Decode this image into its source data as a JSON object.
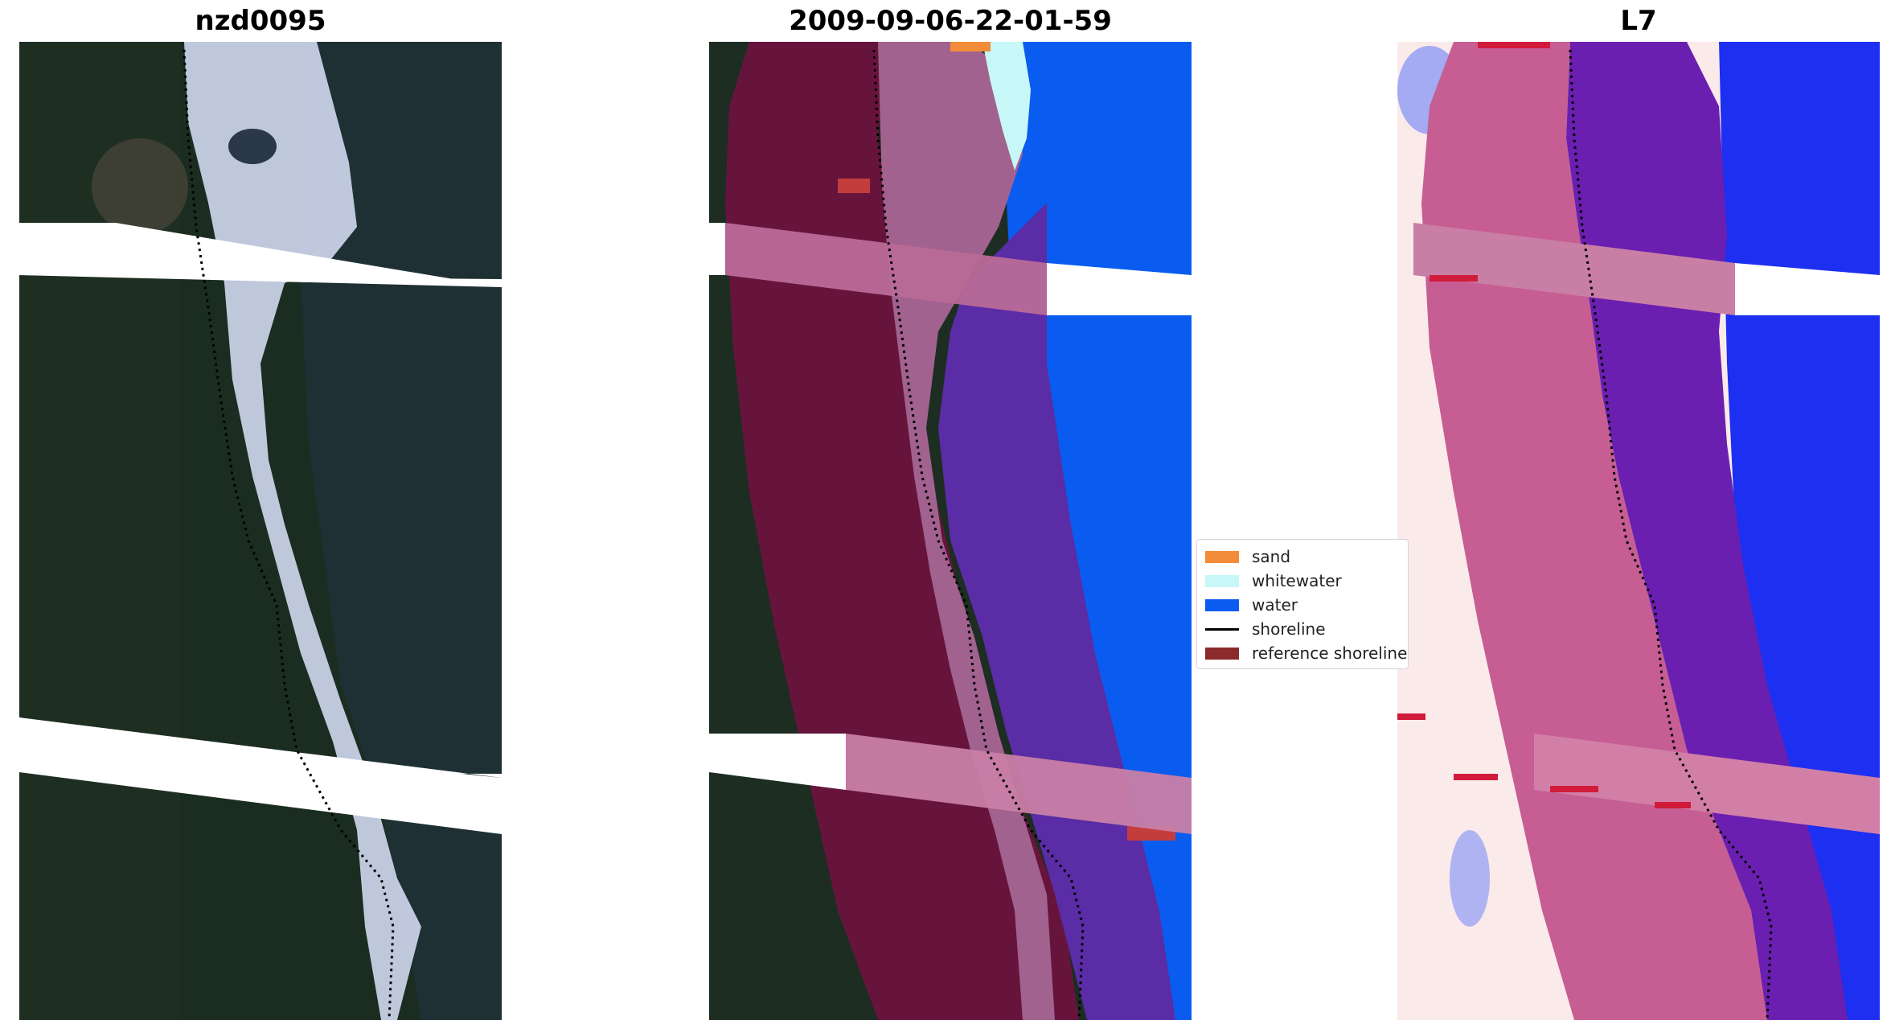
{
  "panels": {
    "left_title": "nzd0095",
    "middle_title": "2009-09-06-22-01-59",
    "right_title": "L7"
  },
  "legend": {
    "items": [
      {
        "label": "sand",
        "kind": "patch",
        "color": "#f28c3a",
        "icon": "sand-swatch-icon"
      },
      {
        "label": "whitewater",
        "kind": "patch",
        "color": "#c7f7f7",
        "icon": "whitewater-swatch-icon"
      },
      {
        "label": "water",
        "kind": "patch",
        "color": "#0a5cf0",
        "icon": "water-swatch-icon"
      },
      {
        "label": "shoreline",
        "kind": "line",
        "color": "#000000",
        "icon": "shoreline-line-icon"
      },
      {
        "label": "reference shoreline",
        "kind": "patch",
        "color": "#8b2a2a",
        "icon": "reference-shoreline-swatch-icon"
      }
    ]
  },
  "colors": {
    "land_rgb": "#1f3022",
    "whitewater_rgb": "#c9d2e6",
    "ocean_rgb": "#203337",
    "classified_land_buffer": "#6e1240",
    "classified_sand_buffer": "#a2628f",
    "classified_water_buffer": "#5a2ca6",
    "classified_open_water": "#0a5cf0",
    "index_land": "#fbeaea",
    "index_buffer_land": "#c65e93",
    "index_buffer_water": "#6a1fb0",
    "index_water": "#1d2ff0"
  }
}
